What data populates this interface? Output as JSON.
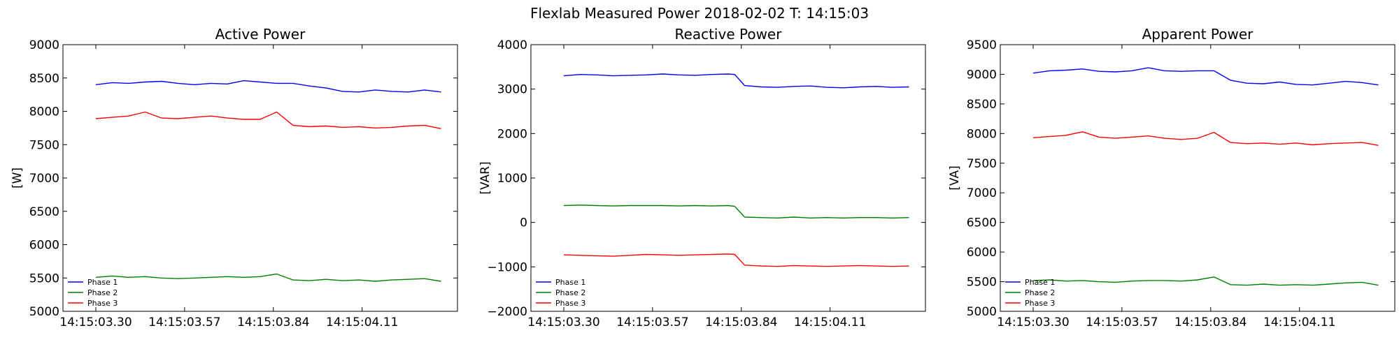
{
  "figure": {
    "title": "Flexlab Measured Power 2018-02-02 T: 14:15:03"
  },
  "chart_data": [
    {
      "type": "line",
      "title": "Active Power",
      "xlabel": "",
      "ylabel": "[W]",
      "ylim": [
        5000,
        9000
      ],
      "yticks": [
        5000,
        5500,
        6000,
        6500,
        7000,
        7500,
        8000,
        8500,
        9000
      ],
      "x_ticks": [
        "14:15:03.30",
        "14:15:03.57",
        "14:15:03.84",
        "14:15:04.11"
      ],
      "x_range": [
        "14:15:03.20",
        "14:15:04.40"
      ],
      "legend_position": "lower-left",
      "grid": false,
      "x": [
        "14:15:03.30",
        "14:15:03.35",
        "14:15:03.40",
        "14:15:03.45",
        "14:15:03.50",
        "14:15:03.55",
        "14:15:03.60",
        "14:15:03.65",
        "14:15:03.70",
        "14:15:03.75",
        "14:15:03.80",
        "14:15:03.85",
        "14:15:03.90",
        "14:15:03.95",
        "14:15:04.00",
        "14:15:04.05",
        "14:15:04.10",
        "14:15:04.15",
        "14:15:04.20",
        "14:15:04.25",
        "14:15:04.30",
        "14:15:04.35"
      ],
      "series": [
        {
          "name": "Phase 1",
          "color": "#0000ff",
          "values": [
            8400,
            8430,
            8420,
            8440,
            8450,
            8420,
            8400,
            8420,
            8410,
            8460,
            8440,
            8420,
            8420,
            8380,
            8350,
            8300,
            8290,
            8320,
            8300,
            8290,
            8320,
            8290
          ]
        },
        {
          "name": "Phase 2",
          "color": "#008000",
          "values": [
            5510,
            5530,
            5510,
            5520,
            5500,
            5490,
            5500,
            5510,
            5520,
            5510,
            5520,
            5560,
            5470,
            5460,
            5480,
            5460,
            5470,
            5450,
            5470,
            5480,
            5490,
            5450
          ]
        },
        {
          "name": "Phase 3",
          "color": "#ff0000",
          "values": [
            7890,
            7910,
            7930,
            7990,
            7900,
            7890,
            7910,
            7930,
            7900,
            7880,
            7880,
            7990,
            7790,
            7770,
            7780,
            7760,
            7770,
            7750,
            7760,
            7780,
            7790,
            7740
          ]
        }
      ]
    },
    {
      "type": "line",
      "title": "Reactive Power",
      "xlabel": "",
      "ylabel": "[VAR]",
      "ylim": [
        -2000,
        4000
      ],
      "yticks": [
        -2000,
        -1000,
        0,
        1000,
        2000,
        3000,
        4000
      ],
      "x_ticks": [
        "14:15:03.30",
        "14:15:03.57",
        "14:15:03.84",
        "14:15:04.11"
      ],
      "x_range": [
        "14:15:03.20",
        "14:15:04.40"
      ],
      "legend_position": "lower-left",
      "grid": false,
      "x": [
        "14:15:03.30",
        "14:15:03.35",
        "14:15:03.40",
        "14:15:03.45",
        "14:15:03.50",
        "14:15:03.55",
        "14:15:03.60",
        "14:15:03.65",
        "14:15:03.70",
        "14:15:03.75",
        "14:15:03.80",
        "14:15:03.82",
        "14:15:03.85",
        "14:15:03.90",
        "14:15:03.95",
        "14:15:04.00",
        "14:15:04.05",
        "14:15:04.10",
        "14:15:04.15",
        "14:15:04.20",
        "14:15:04.25",
        "14:15:04.30",
        "14:15:04.35"
      ],
      "series": [
        {
          "name": "Phase 1",
          "color": "#0000ff",
          "values": [
            3300,
            3330,
            3320,
            3300,
            3310,
            3320,
            3340,
            3320,
            3310,
            3330,
            3340,
            3330,
            3080,
            3050,
            3040,
            3060,
            3070,
            3040,
            3030,
            3050,
            3060,
            3040,
            3050
          ]
        },
        {
          "name": "Phase 2",
          "color": "#008000",
          "values": [
            380,
            390,
            380,
            370,
            380,
            380,
            380,
            370,
            380,
            370,
            380,
            360,
            120,
            110,
            100,
            120,
            100,
            110,
            100,
            110,
            110,
            100,
            110
          ]
        },
        {
          "name": "Phase 3",
          "color": "#ff0000",
          "values": [
            -730,
            -740,
            -750,
            -760,
            -740,
            -720,
            -730,
            -740,
            -730,
            -720,
            -710,
            -720,
            -960,
            -980,
            -990,
            -970,
            -980,
            -990,
            -980,
            -970,
            -980,
            -990,
            -980
          ]
        }
      ]
    },
    {
      "type": "line",
      "title": "Apparent Power",
      "xlabel": "",
      "ylabel": "[VA]",
      "ylim": [
        5000,
        9500
      ],
      "yticks": [
        5000,
        5500,
        6000,
        6500,
        7000,
        7500,
        8000,
        8500,
        9000,
        9500
      ],
      "x_ticks": [
        "14:15:03.30",
        "14:15:03.57",
        "14:15:03.84",
        "14:15:04.11"
      ],
      "x_range": [
        "14:15:03.20",
        "14:15:04.40"
      ],
      "legend_position": "lower-left",
      "grid": false,
      "x": [
        "14:15:03.30",
        "14:15:03.35",
        "14:15:03.40",
        "14:15:03.45",
        "14:15:03.50",
        "14:15:03.55",
        "14:15:03.60",
        "14:15:03.65",
        "14:15:03.70",
        "14:15:03.75",
        "14:15:03.80",
        "14:15:03.85",
        "14:15:03.90",
        "14:15:03.95",
        "14:15:04.00",
        "14:15:04.05",
        "14:15:04.10",
        "14:15:04.15",
        "14:15:04.20",
        "14:15:04.25",
        "14:15:04.30",
        "14:15:04.35"
      ],
      "series": [
        {
          "name": "Phase 1",
          "color": "#0000ff",
          "values": [
            9020,
            9060,
            9070,
            9090,
            9050,
            9040,
            9060,
            9110,
            9060,
            9050,
            9060,
            9060,
            8900,
            8850,
            8840,
            8870,
            8830,
            8820,
            8850,
            8880,
            8860,
            8820
          ]
        },
        {
          "name": "Phase 2",
          "color": "#008000",
          "values": [
            5520,
            5530,
            5510,
            5520,
            5500,
            5490,
            5510,
            5520,
            5520,
            5510,
            5530,
            5580,
            5450,
            5440,
            5460,
            5440,
            5450,
            5440,
            5460,
            5480,
            5490,
            5440
          ]
        },
        {
          "name": "Phase 3",
          "color": "#ff0000",
          "values": [
            7930,
            7950,
            7970,
            8030,
            7940,
            7920,
            7940,
            7960,
            7920,
            7900,
            7920,
            8020,
            7850,
            7830,
            7840,
            7820,
            7840,
            7810,
            7830,
            7840,
            7850,
            7800
          ]
        }
      ]
    }
  ]
}
